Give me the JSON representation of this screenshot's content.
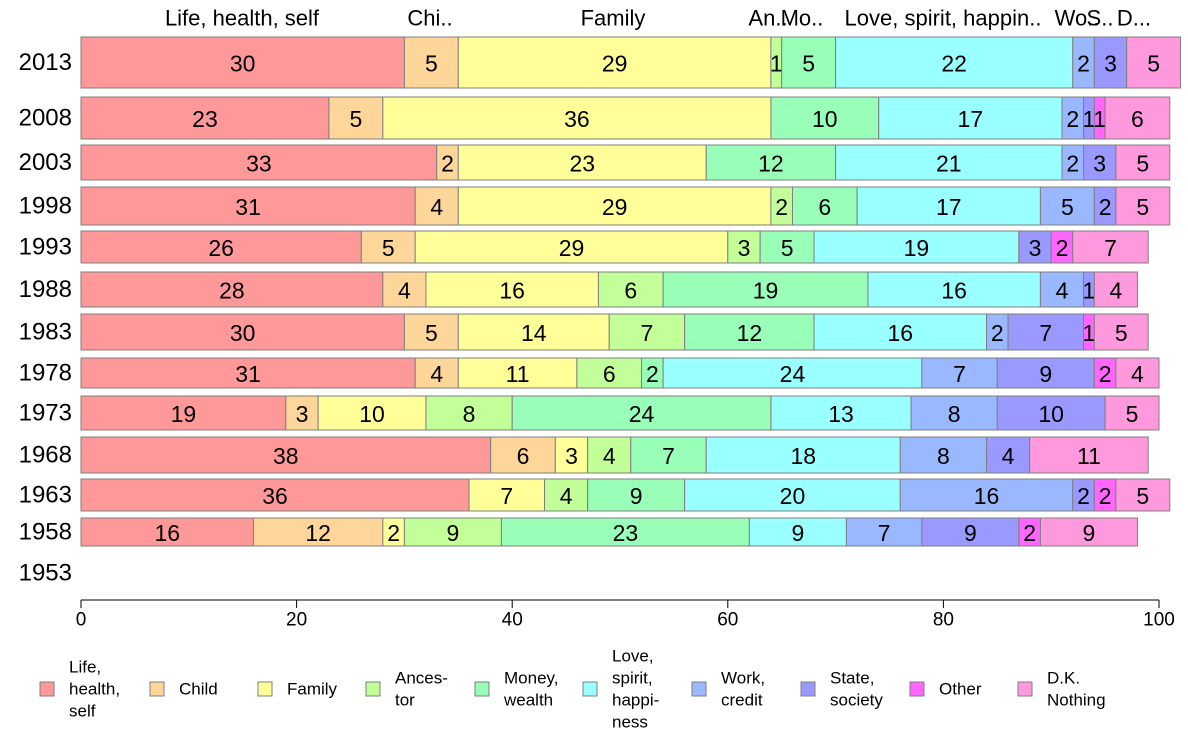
{
  "chart_data": {
    "type": "bar",
    "orientation": "horizontal",
    "stacked": true,
    "categories": [
      "2013",
      "2008",
      "2003",
      "1998",
      "1993",
      "1988",
      "1983",
      "1978",
      "1973",
      "1968",
      "1963",
      "1958",
      "1953"
    ],
    "xlim": [
      0,
      100
    ],
    "xticks": [
      "0",
      "20",
      "40",
      "60",
      "80",
      "100"
    ],
    "grid": false,
    "legend_position": "bottom",
    "top_labels": [
      "Life, health, self",
      "Chi..",
      "Family",
      "An..",
      "Mo..",
      "Love, spirit, happin..",
      "Wo..",
      "S..",
      "D..."
    ],
    "series": [
      {
        "name": "Life, health, self",
        "legend_lines": [
          "Life,",
          "health,",
          "self"
        ],
        "color": "#FF9999",
        "values": [
          30,
          23,
          33,
          31,
          26,
          28,
          30,
          31,
          19,
          38,
          36,
          16,
          null
        ]
      },
      {
        "name": "Child",
        "legend_lines": [
          "Child"
        ],
        "color": "#FFD699",
        "values": [
          5,
          5,
          2,
          4,
          5,
          4,
          5,
          4,
          3,
          6,
          0,
          12,
          null
        ]
      },
      {
        "name": "Family",
        "legend_lines": [
          "Family"
        ],
        "color": "#FFFF99",
        "values": [
          29,
          36,
          23,
          29,
          29,
          16,
          14,
          11,
          10,
          3,
          7,
          2,
          null
        ]
      },
      {
        "name": "Ances-tor",
        "legend_lines": [
          "Ances-",
          "tor"
        ],
        "color": "#C2FF99",
        "values": [
          1,
          0,
          0,
          2,
          3,
          6,
          7,
          6,
          8,
          4,
          4,
          9,
          null
        ]
      },
      {
        "name": "Money, wealth",
        "legend_lines": [
          "Money,",
          "wealth"
        ],
        "color": "#99FFB8",
        "values": [
          5,
          10,
          12,
          6,
          5,
          19,
          12,
          2,
          24,
          7,
          9,
          23,
          null
        ]
      },
      {
        "name": "Love, spirit, happi-ness",
        "legend_lines": [
          "Love,",
          "spirit,",
          "happi-",
          "ness"
        ],
        "color": "#99FFFF",
        "values": [
          22,
          17,
          21,
          17,
          19,
          16,
          16,
          24,
          13,
          18,
          20,
          9,
          null
        ]
      },
      {
        "name": "Work, credit",
        "legend_lines": [
          "Work,",
          "credit"
        ],
        "color": "#99B8FF",
        "values": [
          2,
          2,
          2,
          5,
          0,
          4,
          2,
          7,
          8,
          8,
          16,
          7,
          null
        ]
      },
      {
        "name": "State, society",
        "legend_lines": [
          "State,",
          "society"
        ],
        "color": "#9999FF",
        "values": [
          3,
          1,
          3,
          2,
          3,
          1,
          7,
          9,
          10,
          4,
          2,
          9,
          null
        ]
      },
      {
        "name": "Other",
        "legend_lines": [
          "Other"
        ],
        "color": "#FF66FF",
        "values": [
          0,
          1,
          0,
          0,
          2,
          0,
          1,
          2,
          0,
          0,
          2,
          2,
          null
        ]
      },
      {
        "name": "D.K. Nothing",
        "legend_lines": [
          "D.K.",
          "Nothing"
        ],
        "color": "#FF99DD",
        "values": [
          5,
          6,
          5,
          5,
          7,
          4,
          5,
          4,
          5,
          11,
          5,
          9,
          null
        ]
      }
    ]
  }
}
